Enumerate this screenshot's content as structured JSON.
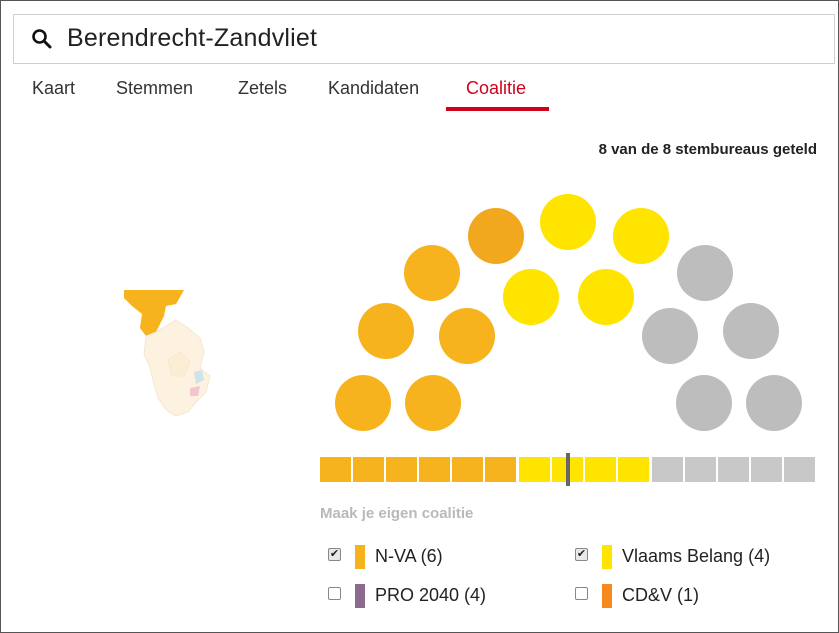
{
  "search": {
    "query": "Berendrecht-Zandvliet",
    "icon": "search-icon"
  },
  "tabs": [
    {
      "label": "Kaart",
      "active": false
    },
    {
      "label": "Stemmen",
      "active": false
    },
    {
      "label": "Zetels",
      "active": false
    },
    {
      "label": "Kandidaten",
      "active": false
    },
    {
      "label": "Coalitie",
      "active": true
    }
  ],
  "status": "8 van de 8 stembureaus geteld",
  "colors": {
    "nva": "#f6b31e",
    "nva_dark": "#f2a81e",
    "vb": "#ffe400",
    "grey": "#bdbdbd",
    "pro": "#8c6a8e",
    "cdv": "#f7891e",
    "accent": "#d0021b"
  },
  "seats": {
    "total": 15,
    "majority_marker_after": 7.5,
    "coalition": [
      "nva",
      "nva",
      "nva",
      "nva",
      "nva",
      "nva",
      "vb",
      "vb",
      "vb",
      "vb",
      "grey",
      "grey",
      "grey",
      "grey",
      "grey"
    ]
  },
  "coalition": {
    "title": "Maak je eigen coalitie",
    "parties": [
      {
        "name": "N-VA (6)",
        "checked": true,
        "color": "#f6b31e"
      },
      {
        "name": "Vlaams Belang (4)",
        "checked": true,
        "color": "#ffe400"
      },
      {
        "name": "PRO 2040 (4)",
        "checked": false,
        "color": "#8c6a8e"
      },
      {
        "name": "CD&V (1)",
        "checked": false,
        "color": "#f7891e"
      }
    ]
  }
}
